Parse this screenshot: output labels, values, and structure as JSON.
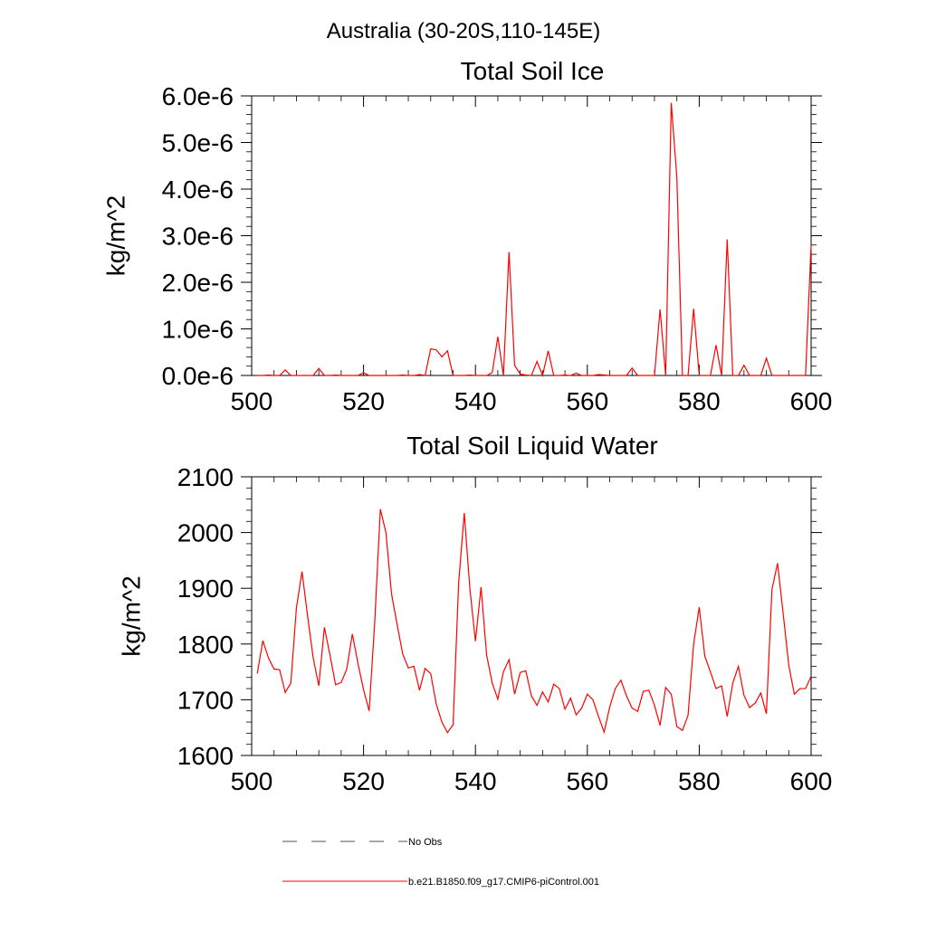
{
  "main_title": "Australia (30-20S,110-145E)",
  "colors": {
    "series_line": "#ff0000",
    "obs_line": "#4a4a8a",
    "axis": "#000000"
  },
  "legend": {
    "items": [
      {
        "label": "No Obs",
        "style": "dashed",
        "color": "#4a4a8a"
      },
      {
        "label": "b.e21.B1850.f09_g17.CMIP6-piControl.001",
        "style": "solid",
        "color": "#ff0000"
      }
    ]
  },
  "chart_data": [
    {
      "type": "line",
      "title": "Total Soil Ice",
      "xlabel": "",
      "ylabel": "kg/m^2",
      "xlim": [
        500,
        600
      ],
      "ylim": [
        0,
        6e-06
      ],
      "x_ticks": [
        500,
        520,
        540,
        560,
        580,
        600
      ],
      "x_tick_labels": [
        "500",
        "520",
        "540",
        "560",
        "580",
        "600"
      ],
      "y_ticks": [
        0,
        1e-06,
        2e-06,
        3e-06,
        4e-06,
        5e-06,
        6e-06
      ],
      "y_tick_labels": [
        "0.0e-6",
        "1.0e-6",
        "2.0e-6",
        "3.0e-6",
        "4.0e-6",
        "5.0e-6",
        "6.0e-6"
      ],
      "series": [
        {
          "name": "b.e21.B1850.f09_g17.CMIP6-piControl.001",
          "x_start": 501,
          "values": [
            0,
            0,
            1e-08,
            0,
            0,
            1.2e-07,
            0,
            0,
            0,
            0,
            0,
            1.5e-07,
            0,
            0,
            1e-08,
            0,
            0,
            0,
            0,
            6e-08,
            0,
            0,
            0,
            0,
            0,
            0,
            1e-08,
            0,
            0,
            2e-08,
            0,
            5.7e-07,
            5.5e-07,
            4e-07,
            5.3e-07,
            0,
            0,
            0,
            1e-08,
            0,
            0,
            0,
            6e-08,
            8.3e-07,
            0,
            2.65e-06,
            2.2e-07,
            3e-08,
            1e-08,
            0,
            3e-07,
            0,
            5.3e-07,
            0,
            0,
            1e-08,
            0,
            5e-08,
            0,
            0,
            0,
            2e-08,
            1e-08,
            0,
            0,
            0,
            0,
            1.6e-07,
            0,
            0,
            0,
            0,
            1.42e-06,
            0,
            5.85e-06,
            4.25e-06,
            0,
            0,
            1.43e-06,
            0,
            0,
            0,
            6.5e-07,
            0,
            2.92e-06,
            0,
            0,
            2.2e-07,
            0,
            0,
            0,
            3.7e-07,
            0,
            0,
            0,
            0,
            0,
            0,
            0,
            2.8e-06
          ]
        }
      ]
    },
    {
      "type": "line",
      "title": "Total Soil Liquid Water",
      "xlabel": "",
      "ylabel": "kg/m^2",
      "xlim": [
        500,
        600
      ],
      "ylim": [
        1600,
        2100
      ],
      "x_ticks": [
        500,
        520,
        540,
        560,
        580,
        600
      ],
      "x_tick_labels": [
        "500",
        "520",
        "540",
        "560",
        "580",
        "600"
      ],
      "y_ticks": [
        1600,
        1700,
        1800,
        1900,
        2000,
        2100
      ],
      "y_tick_labels": [
        "1600",
        "1700",
        "1800",
        "1900",
        "2000",
        "2100"
      ],
      "series": [
        {
          "name": "b.e21.B1850.f09_g17.CMIP6-piControl.001",
          "x_start": 501,
          "values": [
            1747,
            1806,
            1775,
            1755,
            1754,
            1713,
            1730,
            1865,
            1930,
            1850,
            1775,
            1725,
            1830,
            1780,
            1727,
            1731,
            1755,
            1818,
            1765,
            1718,
            1680,
            1840,
            2042,
            2000,
            1890,
            1835,
            1782,
            1757,
            1760,
            1717,
            1756,
            1747,
            1692,
            1660,
            1641,
            1655,
            1910,
            2035,
            1900,
            1805,
            1902,
            1780,
            1730,
            1701,
            1750,
            1772,
            1710,
            1749,
            1752,
            1707,
            1690,
            1714,
            1696,
            1728,
            1720,
            1683,
            1703,
            1673,
            1685,
            1710,
            1700,
            1670,
            1642,
            1687,
            1720,
            1735,
            1707,
            1685,
            1679,
            1715,
            1717,
            1690,
            1654,
            1722,
            1710,
            1652,
            1645,
            1672,
            1800,
            1866,
            1778,
            1750,
            1720,
            1725,
            1670,
            1730,
            1760,
            1708,
            1686,
            1694,
            1712,
            1675,
            1898,
            1945,
            1855,
            1762,
            1710,
            1720,
            1720,
            1742
          ]
        }
      ]
    }
  ]
}
